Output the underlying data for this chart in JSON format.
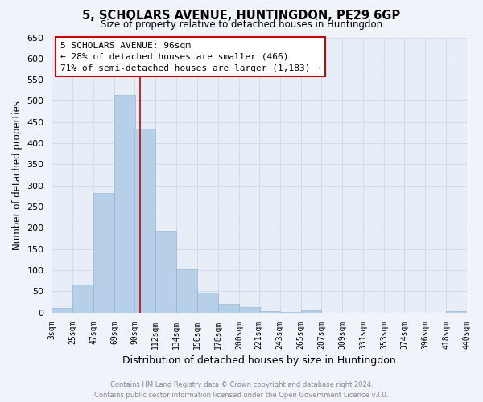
{
  "title": "5, SCHOLARS AVENUE, HUNTINGDON, PE29 6GP",
  "subtitle": "Size of property relative to detached houses in Huntingdon",
  "xlabel": "Distribution of detached houses by size in Huntingdon",
  "ylabel": "Number of detached properties",
  "bin_labels": [
    "3sqm",
    "25sqm",
    "47sqm",
    "69sqm",
    "90sqm",
    "112sqm",
    "134sqm",
    "156sqm",
    "178sqm",
    "200sqm",
    "221sqm",
    "243sqm",
    "265sqm",
    "287sqm",
    "309sqm",
    "331sqm",
    "353sqm",
    "374sqm",
    "396sqm",
    "418sqm",
    "440sqm"
  ],
  "bar_values": [
    10,
    65,
    283,
    515,
    435,
    193,
    102,
    47,
    20,
    13,
    3,
    1,
    5,
    0,
    0,
    0,
    0,
    0,
    0,
    3
  ],
  "bar_color": "#b8cfe8",
  "bar_edge_color": "#8ab0d0",
  "vline_color": "#cc0000",
  "ylim": [
    0,
    650
  ],
  "yticks": [
    0,
    50,
    100,
    150,
    200,
    250,
    300,
    350,
    400,
    450,
    500,
    550,
    600,
    650
  ],
  "vline_x_index": 4,
  "annotation_title": "5 SCHOLARS AVENUE: 96sqm",
  "annotation_line1": "← 28% of detached houses are smaller (466)",
  "annotation_line2": "71% of semi-detached houses are larger (1,183) →",
  "annotation_box_facecolor": "#ffffff",
  "annotation_box_edgecolor": "#cc0000",
  "grid_color": "#d0d8e8",
  "footer1": "Contains HM Land Registry data © Crown copyright and database right 2024.",
  "footer2": "Contains public sector information licensed under the Open Government Licence v3.0.",
  "background_color": "#f0f4fa",
  "plot_bg_color": "#e8eef8",
  "bin_width": 22
}
